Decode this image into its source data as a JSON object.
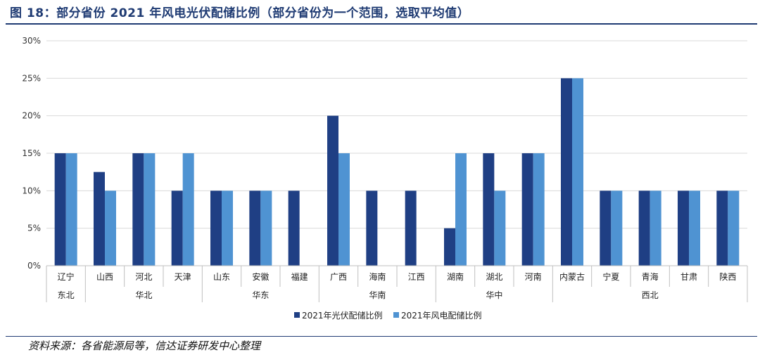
{
  "title": "图 18：部分省份 2021 年风电光伏配储比例（部分省份为一个范围，选取平均值）",
  "source": "资料来源：各省能源局等，信达证券研发中心整理",
  "colors": {
    "solar": "#1f3f84",
    "wind": "#4f93d2",
    "grid": "#d9d9d9",
    "axis": "#bfbfbf",
    "accent": "#1f3b73"
  },
  "chart_data": {
    "type": "bar",
    "categories": [
      "辽宁",
      "山西",
      "河北",
      "天津",
      "山东",
      "安徽",
      "福建",
      "广西",
      "海南",
      "江西",
      "湖南",
      "湖北",
      "河南",
      "内蒙古",
      "宁夏",
      "青海",
      "甘肃",
      "陕西"
    ],
    "groups": [
      {
        "name": "东北",
        "count": 1
      },
      {
        "name": "华北",
        "count": 3
      },
      {
        "name": "华东",
        "count": 3
      },
      {
        "name": "华南",
        "count": 3
      },
      {
        "name": "华中",
        "count": 3
      },
      {
        "name": "西北",
        "count": 5
      }
    ],
    "series": [
      {
        "name": "2021年光伏配储比例",
        "values": [
          15,
          12.5,
          15,
          10,
          10,
          10,
          10,
          20,
          10,
          10,
          5,
          15,
          15,
          25,
          10,
          10,
          10,
          10
        ]
      },
      {
        "name": "2021年风电配储比例",
        "values": [
          15,
          10,
          15,
          15,
          10,
          10,
          0,
          15,
          0,
          0,
          15,
          10,
          15,
          25,
          10,
          10,
          10,
          10
        ]
      }
    ],
    "ylim": [
      0,
      30
    ],
    "yticks": [
      "0%",
      "5%",
      "10%",
      "15%",
      "20%",
      "25%",
      "30%"
    ],
    "grid": true,
    "legend": "bottom-center"
  }
}
